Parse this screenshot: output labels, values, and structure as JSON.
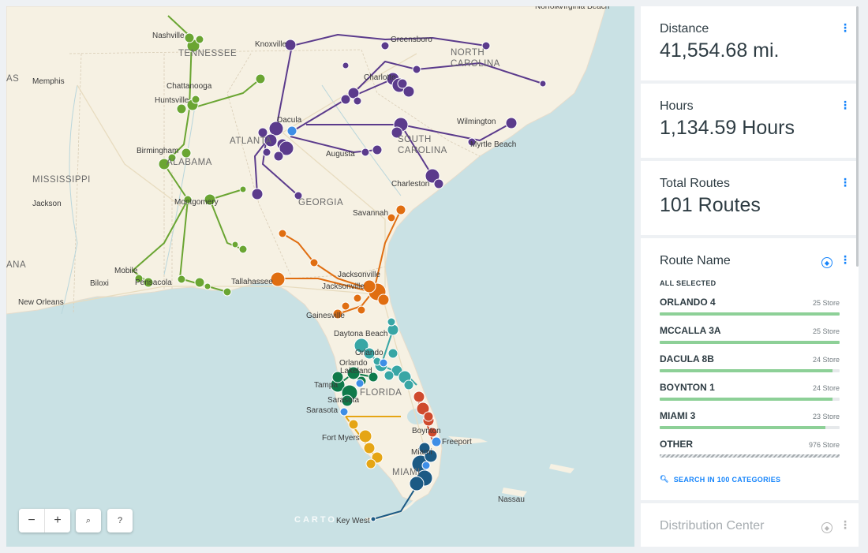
{
  "map": {
    "zoom_out_label": "−",
    "zoom_in_label": "+",
    "search_label": "⌕",
    "help_label": "?",
    "attribution": "CARTO",
    "labels": [
      {
        "text": "Norfolk",
        "type": "city"
      },
      {
        "text": "Virginia Beach",
        "type": "city"
      },
      {
        "text": "Nashville",
        "type": "city"
      },
      {
        "text": "TENNESSEE",
        "type": "state"
      },
      {
        "text": "Knoxville",
        "type": "city"
      },
      {
        "text": "Greensboro",
        "type": "city"
      },
      {
        "text": "NORTH",
        "type": "state"
      },
      {
        "text": "CAROLINA",
        "type": "state"
      },
      {
        "text": "AS",
        "type": "state"
      },
      {
        "text": "Memphis",
        "type": "city"
      },
      {
        "text": "Chattanooga",
        "type": "city"
      },
      {
        "text": "Charlotte",
        "type": "city"
      },
      {
        "text": "Huntsville",
        "type": "city"
      },
      {
        "text": "Dacula",
        "type": "city"
      },
      {
        "text": "ATLANTA",
        "type": "state"
      },
      {
        "text": "Wilmington",
        "type": "city"
      },
      {
        "text": "Birmingham",
        "type": "city"
      },
      {
        "text": "SOUTH",
        "type": "state"
      },
      {
        "text": "CAROLINA",
        "type": "state"
      },
      {
        "text": "ALABAMA",
        "type": "state"
      },
      {
        "text": "Augusta",
        "type": "city"
      },
      {
        "text": "Myrtle Beach",
        "type": "city"
      },
      {
        "text": "MISSISSIPPI",
        "type": "state"
      },
      {
        "text": "Charleston",
        "type": "city"
      },
      {
        "text": "Jackson",
        "type": "city"
      },
      {
        "text": "Montgomery",
        "type": "city"
      },
      {
        "text": "GEORGIA",
        "type": "state"
      },
      {
        "text": "Savannah",
        "type": "city"
      },
      {
        "text": "ANA",
        "type": "state"
      },
      {
        "text": "Mobile",
        "type": "city"
      },
      {
        "text": "Jacksonville",
        "type": "city"
      },
      {
        "text": "Biloxi",
        "type": "city"
      },
      {
        "text": "Pensacola",
        "type": "city"
      },
      {
        "text": "Tallahassee",
        "type": "city"
      },
      {
        "text": "Jacksonville",
        "type": "city"
      },
      {
        "text": "New Orleans",
        "type": "city"
      },
      {
        "text": "Gainesville",
        "type": "city"
      },
      {
        "text": "Daytona Beach",
        "type": "city"
      },
      {
        "text": "Orlando",
        "type": "city"
      },
      {
        "text": "Orlando",
        "type": "city"
      },
      {
        "text": "Lakeland",
        "type": "city"
      },
      {
        "text": "Tampa",
        "type": "city"
      },
      {
        "text": "FLORIDA",
        "type": "state"
      },
      {
        "text": "Sarasota",
        "type": "city"
      },
      {
        "text": "Sarasota",
        "type": "city"
      },
      {
        "text": "Boynton",
        "type": "city"
      },
      {
        "text": "Fort Myers",
        "type": "city"
      },
      {
        "text": "Freeport",
        "type": "city"
      },
      {
        "text": "Miami",
        "type": "city"
      },
      {
        "text": "MIAMI",
        "type": "state"
      },
      {
        "text": "Nassau",
        "type": "city"
      },
      {
        "text": "Key West",
        "type": "city"
      }
    ],
    "route_colors": {
      "atlanta": "#5b3b8c",
      "alabama": "#6aa532",
      "jacksonville": "#e06e11",
      "orlando": "#38a6a5",
      "tampa": "#0f7a4a",
      "fortmyers": "#e5a515",
      "boynton": "#cf4a2d",
      "miami": "#1c5a84",
      "hub": "#3e8ee6"
    }
  },
  "widgets": {
    "distance": {
      "title": "Distance",
      "value": "41,554.68 mi."
    },
    "hours": {
      "title": "Hours",
      "value": "1,134.59 Hours"
    },
    "total_routes": {
      "title": "Total Routes",
      "value": "101 Routes"
    },
    "route_name": {
      "title": "Route Name",
      "all_selected": "ALL SELECTED",
      "categories": [
        {
          "name": "ORLANDO 4",
          "count": "25 Store",
          "fraction": 1.0
        },
        {
          "name": "MCCALLA 3A",
          "count": "25 Store",
          "fraction": 1.0
        },
        {
          "name": "DACULA 8B",
          "count": "24 Store",
          "fraction": 0.96
        },
        {
          "name": "BOYNTON 1",
          "count": "24 Store",
          "fraction": 0.96
        },
        {
          "name": "MIAMI 3",
          "count": "23 Store",
          "fraction": 0.92
        }
      ],
      "other": {
        "name": "OTHER",
        "count": "976 Store"
      },
      "search_label": "SEARCH IN 100 CATEGORIES"
    },
    "distribution_center": {
      "title": "Distribution Center"
    }
  }
}
